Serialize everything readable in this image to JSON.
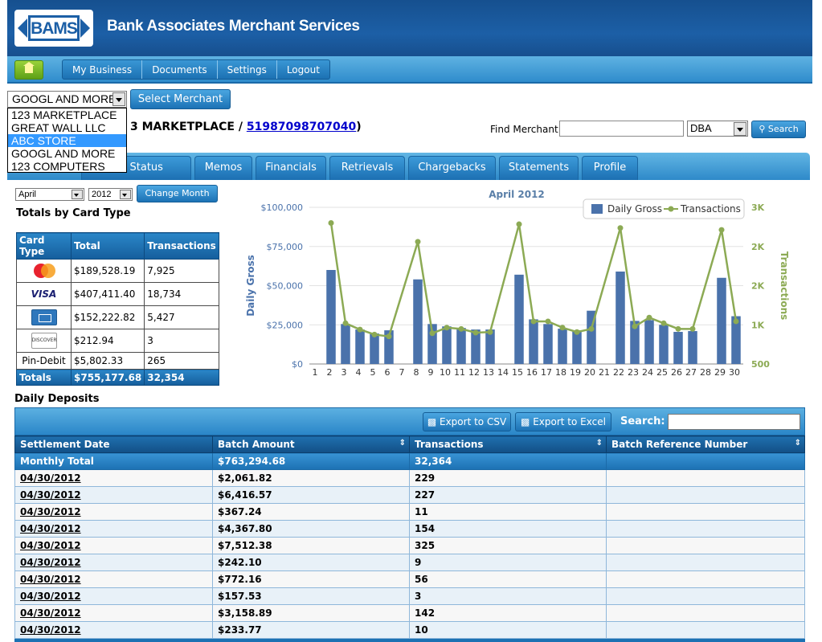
{
  "header": {
    "logo_text": "BAMS",
    "company": "Bank Associates Merchant Services"
  },
  "nav": {
    "items": [
      "My Business",
      "Documents",
      "Settings",
      "Logout"
    ]
  },
  "merchant": {
    "selected": "GOOGL AND MORE",
    "options": [
      "123 MARKETPLACE",
      "GREAT WALL LLC",
      "ABC STORE",
      "GOOGL AND MORE",
      "123 COMPUTERS"
    ],
    "highlighted_index": 2,
    "select_button": "Select Merchant",
    "title_prefix": "3 MARKETPLACE / ",
    "title_link": "51987098707040",
    "title_suffix": ")"
  },
  "find": {
    "label": "Find Merchant:",
    "value": "",
    "type": "DBA",
    "button": "Search"
  },
  "tabs": [
    "ant Status",
    "Memos",
    "Financials",
    "Retrievals",
    "Chargebacks",
    "Statements",
    "Profile"
  ],
  "period": {
    "month": "April",
    "year": "2012",
    "button": "Change Month"
  },
  "card_totals": {
    "title": "Totals by Card Type",
    "headers": [
      "Card Type",
      "Total",
      "Transactions"
    ],
    "rows": [
      {
        "card": "mastercard",
        "total": "$189,528.19",
        "transactions": "7,925"
      },
      {
        "card": "visa",
        "card_text": "VISA",
        "total": "$407,411.40",
        "transactions": "18,734"
      },
      {
        "card": "amex",
        "total": "$152,222.82",
        "transactions": "5,427"
      },
      {
        "card": "discover",
        "card_text": "DISCOVER",
        "total": "$212.94",
        "transactions": "3"
      },
      {
        "card": "text",
        "card_text": "Pin-Debit",
        "total": "$5,802.33",
        "transactions": "265"
      }
    ],
    "totals": {
      "label": "Totals",
      "total": "$755,177.68",
      "transactions": "32,354"
    }
  },
  "chart_data": {
    "type": "bar",
    "title": "April 2012",
    "categories": [
      "1",
      "2",
      "3",
      "4",
      "5",
      "6",
      "7",
      "8",
      "9",
      "10",
      "11",
      "12",
      "13",
      "14",
      "15",
      "16",
      "17",
      "18",
      "19",
      "20",
      "21",
      "22",
      "23",
      "24",
      "25",
      "26",
      "27",
      "28",
      "29",
      "30"
    ],
    "series": [
      {
        "name": "Daily Gross",
        "type": "bar",
        "axis": "left",
        "values": [
          0,
          60000,
          25500,
          22000,
          19500,
          21500,
          0,
          54000,
          25500,
          24000,
          23000,
          22000,
          22000,
          0,
          57000,
          28500,
          25500,
          22500,
          21500,
          34000,
          0,
          59000,
          27500,
          28000,
          25000,
          20500,
          21000,
          0,
          55000,
          30500
        ]
      },
      {
        "name": "Transactions",
        "type": "line",
        "axis": "right",
        "values": [
          null,
          2750,
          1150,
          1050,
          970,
          940,
          null,
          2450,
          990,
          1080,
          1060,
          1000,
          1010,
          null,
          2730,
          1180,
          1180,
          1080,
          1010,
          1060,
          null,
          2670,
          1100,
          1240,
          1150,
          1060,
          1060,
          null,
          2640,
          1180
        ]
      }
    ],
    "ylabel": "Daily Gross",
    "y2label": "Transactions",
    "yticks": [
      "$0",
      "$25,000",
      "$50,000",
      "$75,000",
      "$100,000"
    ],
    "y2ticks": [
      "500",
      "1K",
      "2K",
      "2K",
      "3K"
    ],
    "ylim": [
      0,
      100000
    ],
    "y2lim": [
      500,
      3000
    ],
    "legend": "top-right",
    "colors": {
      "bar": "#4a72ab",
      "line": "#8caa54"
    }
  },
  "deposits": {
    "title": "Daily Deposits",
    "export_csv": "Export to CSV",
    "export_excel": "Export to Excel",
    "search_label": "Search:",
    "search_value": "",
    "headers": [
      "Settlement Date",
      "Batch Amount",
      "Transactions",
      "Batch Reference Number"
    ],
    "monthly_total": {
      "label": "Monthly Total",
      "amount": "$763,294.68",
      "transactions": "32,364",
      "ref": ""
    },
    "rows": [
      {
        "date": "04/30/2012",
        "amount": "$2,061.82",
        "transactions": "229",
        "ref": ""
      },
      {
        "date": "04/30/2012",
        "amount": "$6,416.57",
        "transactions": "227",
        "ref": ""
      },
      {
        "date": "04/30/2012",
        "amount": "$367.24",
        "transactions": "11",
        "ref": ""
      },
      {
        "date": "04/30/2012",
        "amount": "$4,367.80",
        "transactions": "154",
        "ref": ""
      },
      {
        "date": "04/30/2012",
        "amount": "$7,512.38",
        "transactions": "325",
        "ref": ""
      },
      {
        "date": "04/30/2012",
        "amount": "$242.10",
        "transactions": "9",
        "ref": ""
      },
      {
        "date": "04/30/2012",
        "amount": "$772.16",
        "transactions": "56",
        "ref": ""
      },
      {
        "date": "04/30/2012",
        "amount": "$157.53",
        "transactions": "3",
        "ref": ""
      },
      {
        "date": "04/30/2012",
        "amount": "$3,158.89",
        "transactions": "142",
        "ref": ""
      },
      {
        "date": "04/30/2012",
        "amount": "$233.77",
        "transactions": "10",
        "ref": ""
      }
    ]
  }
}
